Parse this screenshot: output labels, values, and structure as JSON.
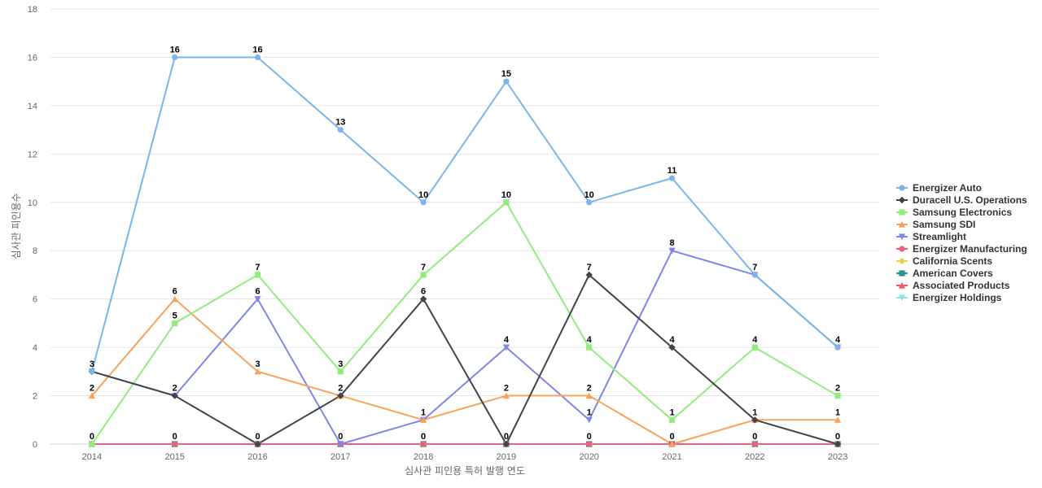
{
  "chart_data": {
    "type": "line",
    "title": "",
    "xlabel": "심사관 피인용 특허 발행 연도",
    "ylabel": "심사관 피인용수",
    "ylim": [
      0,
      18
    ],
    "yticks": [
      0,
      2,
      4,
      6,
      8,
      10,
      12,
      14,
      16,
      18
    ],
    "categories": [
      "2014",
      "2015",
      "2016",
      "2017",
      "2018",
      "2019",
      "2020",
      "2021",
      "2022",
      "2023"
    ],
    "grid": true,
    "legend_position": "right",
    "series": [
      {
        "name": "Energizer Auto",
        "color": "#7cb5ec",
        "marker": "circle",
        "values": [
          3,
          16,
          16,
          13,
          10,
          15,
          10,
          11,
          7,
          4
        ],
        "labels": true
      },
      {
        "name": "Duracell U.S. Operations",
        "color": "#434348",
        "marker": "diamond",
        "values": [
          3,
          2,
          0,
          2,
          6,
          0,
          7,
          4,
          1,
          0
        ],
        "labels": true
      },
      {
        "name": "Samsung Electronics",
        "color": "#90ed7d",
        "marker": "square",
        "values": [
          0,
          5,
          7,
          3,
          7,
          10,
          4,
          1,
          4,
          2
        ],
        "labels": true
      },
      {
        "name": "Samsung SDI",
        "color": "#f7a35c",
        "marker": "triangle",
        "values": [
          2,
          6,
          3,
          2,
          1,
          2,
          2,
          0,
          1,
          1
        ],
        "labels": true
      },
      {
        "name": "Streamlight",
        "color": "#8085e9",
        "marker": "triangle-down",
        "values": [
          3,
          2,
          6,
          0,
          1,
          4,
          1,
          8,
          7,
          4
        ],
        "labels": true
      },
      {
        "name": "Energizer Manufacturing",
        "color": "#f15c80",
        "marker": "circle",
        "values": [
          0,
          0,
          0,
          0,
          0,
          0,
          0,
          0,
          0,
          0
        ],
        "labels": false
      },
      {
        "name": "California Scents",
        "color": "#e4d354",
        "marker": "diamond",
        "values": [
          0,
          0,
          0,
          0,
          0,
          0,
          0,
          0,
          0,
          0
        ],
        "labels": false
      },
      {
        "name": "American Covers",
        "color": "#2b908f",
        "marker": "square",
        "values": [
          0,
          0,
          0,
          0,
          0,
          0,
          0,
          0,
          0,
          0
        ],
        "labels": false
      },
      {
        "name": "Associated Products",
        "color": "#f45b5b",
        "marker": "triangle",
        "values": [
          0,
          0,
          0,
          0,
          0,
          0,
          0,
          0,
          0,
          0
        ],
        "labels": false
      },
      {
        "name": "Energizer Holdings",
        "color": "#91e8e1",
        "marker": "triangle-down",
        "values": [
          0,
          0,
          0,
          0,
          0,
          0,
          0,
          0,
          0,
          0
        ],
        "labels": false
      }
    ],
    "point_labels": [
      {
        "x": "2014",
        "value": 3
      },
      {
        "x": "2014",
        "value": 2
      },
      {
        "x": "2014",
        "value": 0
      },
      {
        "x": "2015",
        "value": 16
      },
      {
        "x": "2015",
        "value": 6
      },
      {
        "x": "2015",
        "value": 5
      },
      {
        "x": "2015",
        "value": 2
      },
      {
        "x": "2015",
        "value": 0
      },
      {
        "x": "2016",
        "value": 16
      },
      {
        "x": "2016",
        "value": 7
      },
      {
        "x": "2016",
        "value": 6
      },
      {
        "x": "2016",
        "value": 3
      },
      {
        "x": "2016",
        "value": 0
      },
      {
        "x": "2017",
        "value": 13
      },
      {
        "x": "2017",
        "value": 3
      },
      {
        "x": "2017",
        "value": 2
      },
      {
        "x": "2017",
        "value": 0
      },
      {
        "x": "2018",
        "value": 10
      },
      {
        "x": "2018",
        "value": 7
      },
      {
        "x": "2018",
        "value": 6
      },
      {
        "x": "2018",
        "value": 1
      },
      {
        "x": "2018",
        "value": 0
      },
      {
        "x": "2019",
        "value": 15
      },
      {
        "x": "2019",
        "value": 10
      },
      {
        "x": "2019",
        "value": 4
      },
      {
        "x": "2019",
        "value": 2
      },
      {
        "x": "2019",
        "value": 0
      },
      {
        "x": "2020",
        "value": 10
      },
      {
        "x": "2020",
        "value": 7
      },
      {
        "x": "2020",
        "value": 4
      },
      {
        "x": "2020",
        "value": 2
      },
      {
        "x": "2020",
        "value": 1
      },
      {
        "x": "2020",
        "value": 0
      },
      {
        "x": "2021",
        "value": 11
      },
      {
        "x": "2021",
        "value": 8
      },
      {
        "x": "2021",
        "value": 4
      },
      {
        "x": "2021",
        "value": 1
      },
      {
        "x": "2021",
        "value": 0
      },
      {
        "x": "2022",
        "value": 7
      },
      {
        "x": "2022",
        "value": 4
      },
      {
        "x": "2022",
        "value": 1
      },
      {
        "x": "2022",
        "value": 0
      },
      {
        "x": "2023",
        "value": 4
      },
      {
        "x": "2023",
        "value": 2
      },
      {
        "x": "2023",
        "value": 1
      },
      {
        "x": "2023",
        "value": 0
      }
    ]
  }
}
